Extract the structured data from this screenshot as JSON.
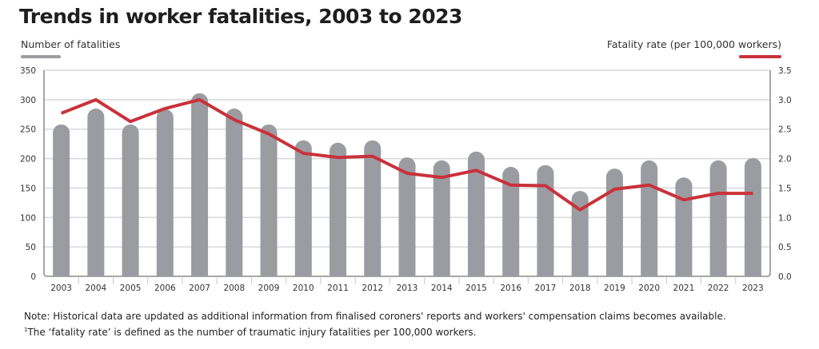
{
  "chart_data": {
    "type": "bar",
    "title": "Trends in worker fatalities, 2003 to 2023",
    "categories": [
      "2003",
      "2004",
      "2005",
      "2006",
      "2007",
      "2008",
      "2009",
      "2010",
      "2011",
      "2012",
      "2013",
      "2014",
      "2015",
      "2016",
      "2017",
      "2018",
      "2019",
      "2020",
      "2021",
      "2022",
      "2023"
    ],
    "series": [
      {
        "name": "Number of fatalities",
        "type": "bar",
        "axis": "left",
        "color": "#9a9ca1",
        "values": [
          258,
          285,
          258,
          284,
          311,
          285,
          258,
          231,
          227,
          231,
          202,
          197,
          212,
          186,
          189,
          145,
          183,
          197,
          168,
          197,
          201
        ]
      },
      {
        "name": "Fatality rate (per 100,000 workers)",
        "type": "line",
        "axis": "right",
        "color": "#c9313a",
        "values": [
          2.77,
          3.0,
          2.63,
          2.85,
          3.0,
          2.66,
          2.42,
          2.09,
          2.02,
          2.04,
          1.75,
          1.68,
          1.8,
          1.55,
          1.54,
          1.13,
          1.48,
          1.55,
          1.3,
          1.41,
          1.41
        ]
      }
    ],
    "ylim_left": [
      0,
      350
    ],
    "yticks_left": [
      "0",
      "50",
      "100",
      "150",
      "200",
      "250",
      "300",
      "350"
    ],
    "ylim_right": [
      0,
      3.5
    ],
    "yticks_right": [
      "0.0",
      "0.5",
      "1.0",
      "1.5",
      "2.0",
      "2.5",
      "3.0",
      "3.5"
    ],
    "grid": true,
    "legend": "top"
  },
  "notes": [
    "Note: Historical data are updated as additional information from finalised coroners' reports and workers' compensation claims becomes available.",
    "The ‘fatality rate’ is defined as the number of traumatic injury fatalities per 100,000 workers."
  ],
  "note_marker": "1"
}
